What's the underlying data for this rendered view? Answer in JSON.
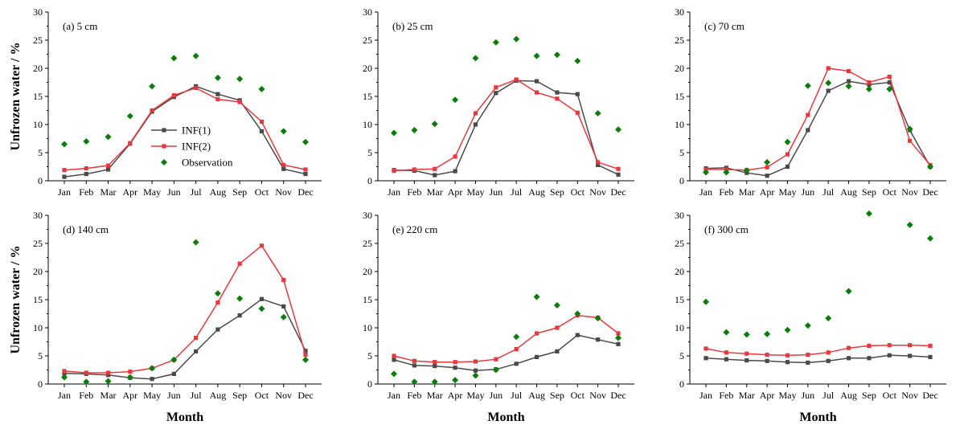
{
  "colors": {
    "inf1": "#4a4a4a",
    "inf2": "#e8383d",
    "observation": "#0b7d0b",
    "axis": "#000000"
  },
  "chart_data": [
    {
      "type": "line",
      "panel_label": "(a) 5 cm",
      "categories": [
        "Jan",
        "Feb",
        "Mar",
        "Apr",
        "May",
        "Jun",
        "Jul",
        "Aug",
        "Sep",
        "Oct",
        "Nov",
        "Dec"
      ],
      "ylim": [
        0,
        30
      ],
      "yticks": [
        "0",
        "5",
        "10",
        "15",
        "20",
        "25",
        "30"
      ],
      "ylabel": "Unfrozen water / %",
      "xlabel": "",
      "legend": {
        "shown": true,
        "placement": "left-middle"
      },
      "series": [
        {
          "name": "INF(1)",
          "marker": "square",
          "line": true,
          "values": [
            0.7,
            1.2,
            2.0,
            6.6,
            12.3,
            14.9,
            16.8,
            15.4,
            14.3,
            8.8,
            2.1,
            1.2
          ]
        },
        {
          "name": "INF(2)",
          "marker": "square",
          "line": true,
          "values": [
            1.9,
            2.2,
            2.7,
            6.7,
            12.5,
            15.2,
            16.5,
            14.5,
            14.0,
            10.5,
            2.8,
            2.0
          ]
        },
        {
          "name": "Observation",
          "marker": "diamond",
          "line": false,
          "values": [
            6.5,
            7.0,
            7.8,
            11.5,
            16.8,
            21.8,
            22.2,
            18.3,
            18.1,
            16.3,
            8.8,
            6.9
          ]
        }
      ]
    },
    {
      "type": "line",
      "panel_label": "(b) 25 cm",
      "categories": [
        "Jan",
        "Feb",
        "Mar",
        "Apr",
        "May",
        "Jun",
        "Jul",
        "Aug",
        "Sep",
        "Oct",
        "Nov",
        "Dec"
      ],
      "ylim": [
        0,
        30
      ],
      "yticks": [
        "0",
        "5",
        "10",
        "15",
        "20",
        "25",
        "30"
      ],
      "ylabel": "",
      "xlabel": "",
      "legend": {
        "shown": false
      },
      "series": [
        {
          "name": "INF(1)",
          "marker": "square",
          "line": true,
          "values": [
            1.9,
            1.8,
            1.0,
            1.7,
            10.0,
            15.6,
            17.8,
            17.7,
            15.7,
            15.4,
            2.8,
            1.1
          ]
        },
        {
          "name": "INF(2)",
          "marker": "square",
          "line": true,
          "values": [
            1.8,
            2.0,
            2.1,
            4.3,
            12.0,
            16.6,
            18.0,
            15.7,
            14.6,
            12.1,
            3.3,
            2.1
          ]
        },
        {
          "name": "Observation",
          "marker": "diamond",
          "line": false,
          "values": [
            8.5,
            9.0,
            10.1,
            14.4,
            21.8,
            24.6,
            25.2,
            22.2,
            22.4,
            21.3,
            12.0,
            9.1
          ]
        }
      ]
    },
    {
      "type": "line",
      "panel_label": "(c) 70 cm",
      "categories": [
        "Jan",
        "Feb",
        "Mar",
        "Apr",
        "May",
        "Jun",
        "Jul",
        "Aug",
        "Sep",
        "Oct",
        "Nov",
        "Dec"
      ],
      "ylim": [
        0,
        30
      ],
      "yticks": [
        "0",
        "5",
        "10",
        "15",
        "20",
        "25",
        "30"
      ],
      "ylabel": "",
      "xlabel": "",
      "legend": {
        "shown": false
      },
      "series": [
        {
          "name": "INF(1)",
          "marker": "square",
          "line": true,
          "values": [
            2.2,
            2.3,
            1.4,
            0.9,
            2.5,
            9.0,
            16.0,
            17.7,
            17.1,
            17.5,
            9.0,
            2.5
          ]
        },
        {
          "name": "INF(2)",
          "marker": "square",
          "line": true,
          "values": [
            2.0,
            2.0,
            1.9,
            2.4,
            4.7,
            11.7,
            20.0,
            19.5,
            17.5,
            18.5,
            7.1,
            2.8
          ]
        },
        {
          "name": "Observation",
          "marker": "diamond",
          "line": false,
          "values": [
            1.5,
            1.5,
            1.8,
            3.3,
            6.9,
            16.9,
            17.4,
            16.8,
            16.3,
            16.3,
            9.2,
            2.5
          ]
        }
      ]
    },
    {
      "type": "line",
      "panel_label": "(d) 140 cm",
      "categories": [
        "Jan",
        "Feb",
        "Mar",
        "Apr",
        "May",
        "Jun",
        "Jul",
        "Aug",
        "Sep",
        "Oct",
        "Nov",
        "Dec"
      ],
      "ylim": [
        0,
        30
      ],
      "yticks": [
        "0",
        "5",
        "10",
        "15",
        "20",
        "25",
        "30"
      ],
      "ylabel": "Unfrozen water / %",
      "xlabel": "Month",
      "legend": {
        "shown": false
      },
      "series": [
        {
          "name": "INF(1)",
          "marker": "square",
          "line": true,
          "values": [
            1.9,
            1.8,
            1.6,
            1.1,
            0.9,
            1.8,
            5.8,
            9.7,
            12.2,
            15.1,
            13.8,
            5.9
          ]
        },
        {
          "name": "INF(2)",
          "marker": "square",
          "line": true,
          "values": [
            2.3,
            2.0,
            2.0,
            2.2,
            2.8,
            4.3,
            8.2,
            14.5,
            21.4,
            24.6,
            18.5,
            5.2
          ]
        },
        {
          "name": "Observation",
          "marker": "diamond",
          "line": false,
          "values": [
            1.2,
            0.4,
            0.5,
            1.2,
            2.8,
            4.3,
            25.2,
            16.1,
            15.2,
            13.4,
            11.9,
            4.3
          ]
        }
      ]
    },
    {
      "type": "line",
      "panel_label": "(e) 220 cm",
      "categories": [
        "Jan",
        "Feb",
        "Mar",
        "Apr",
        "May",
        "Jun",
        "Jul",
        "Aug",
        "Sep",
        "Oct",
        "Nov",
        "Dec"
      ],
      "ylim": [
        0,
        30
      ],
      "yticks": [
        "0",
        "5",
        "10",
        "15",
        "20",
        "25",
        "30"
      ],
      "ylabel": "",
      "xlabel": "Month",
      "legend": {
        "shown": false
      },
      "series": [
        {
          "name": "INF(1)",
          "marker": "square",
          "line": true,
          "values": [
            4.3,
            3.3,
            3.2,
            2.9,
            2.4,
            2.6,
            3.6,
            4.8,
            5.8,
            8.7,
            7.9,
            7.1
          ]
        },
        {
          "name": "INF(2)",
          "marker": "square",
          "line": true,
          "values": [
            5.0,
            4.1,
            3.9,
            3.9,
            4.0,
            4.4,
            6.2,
            9.0,
            10.0,
            12.2,
            11.8,
            9.0
          ]
        },
        {
          "name": "Observation",
          "marker": "diamond",
          "line": false,
          "values": [
            1.8,
            0.4,
            0.4,
            0.7,
            1.5,
            2.5,
            8.4,
            15.5,
            14.0,
            12.5,
            11.7,
            8.2
          ]
        }
      ]
    },
    {
      "type": "line",
      "panel_label": "(f) 300 cm",
      "categories": [
        "Jan",
        "Feb",
        "Mar",
        "Apr",
        "May",
        "Jun",
        "Jul",
        "Aug",
        "Sep",
        "Oct",
        "Nov",
        "Dec"
      ],
      "ylim": [
        0,
        30
      ],
      "yticks": [
        "0",
        "5",
        "10",
        "15",
        "20",
        "25",
        "30"
      ],
      "ylabel": "",
      "xlabel": "Month",
      "legend": {
        "shown": false
      },
      "series": [
        {
          "name": "INF(1)",
          "marker": "square",
          "line": true,
          "values": [
            4.6,
            4.4,
            4.2,
            4.1,
            3.9,
            3.8,
            4.1,
            4.6,
            4.6,
            5.1,
            5.0,
            4.8
          ]
        },
        {
          "name": "INF(2)",
          "marker": "square",
          "line": true,
          "values": [
            6.3,
            5.6,
            5.4,
            5.2,
            5.1,
            5.2,
            5.6,
            6.4,
            6.8,
            6.9,
            6.9,
            6.8
          ]
        },
        {
          "name": "Observation",
          "marker": "diamond",
          "line": false,
          "values": [
            14.6,
            9.2,
            8.8,
            8.9,
            9.6,
            10.4,
            11.7,
            16.5,
            30.3,
            null,
            28.3,
            25.9
          ]
        }
      ]
    }
  ]
}
